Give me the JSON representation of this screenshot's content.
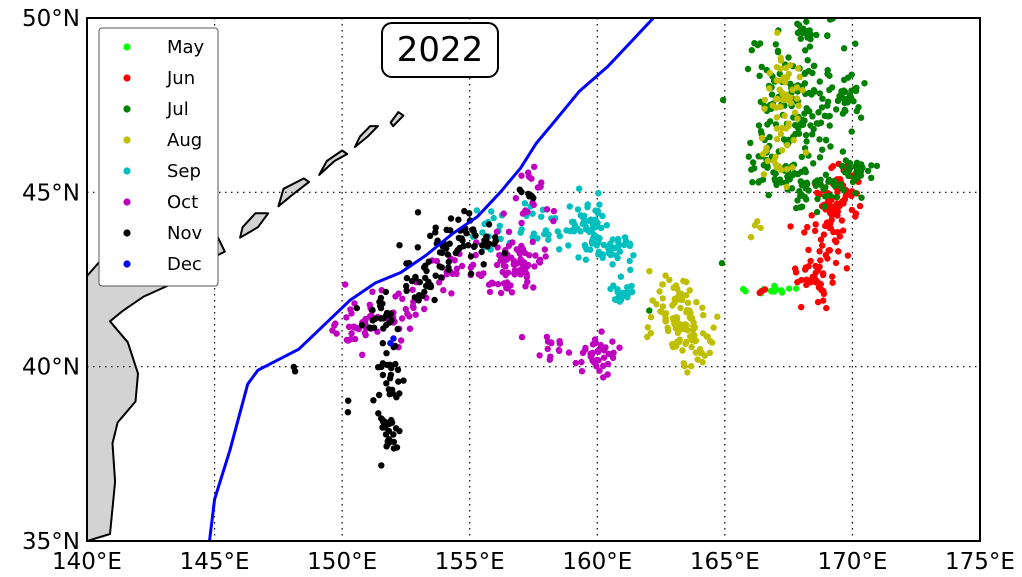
{
  "chart_data": {
    "type": "scatter",
    "title": "2022",
    "xlim": [
      140,
      175
    ],
    "ylim": [
      35,
      50
    ],
    "grid": true,
    "legend_position": "top-left",
    "x_ticks": [
      {
        "value": 140,
        "label": "140°E"
      },
      {
        "value": 145,
        "label": "145°E"
      },
      {
        "value": 150,
        "label": "150°E"
      },
      {
        "value": 155,
        "label": "155°E"
      },
      {
        "value": 160,
        "label": "160°E"
      },
      {
        "value": 165,
        "label": "165°E"
      },
      {
        "value": 170,
        "label": "170°E"
      },
      {
        "value": 175,
        "label": "175°E"
      }
    ],
    "y_ticks": [
      {
        "value": 35,
        "label": "35°N"
      },
      {
        "value": 40,
        "label": "40°N"
      },
      {
        "value": 45,
        "label": "45°N"
      },
      {
        "value": 50,
        "label": "50°N"
      }
    ],
    "colors": {
      "May": "#00ff00",
      "Jun": "#ff0000",
      "Jul": "#008000",
      "Aug": "#bfbf00",
      "Sep": "#00bfbf",
      "Oct": "#bf00bf",
      "Nov": "#000000",
      "Dec": "#0000ff",
      "line": "#0000ff",
      "land": "#d3d3d3"
    },
    "series": [
      {
        "name": "May",
        "clusters": [
          {
            "lon": 166.8,
            "lat": 42.2,
            "sdx": 0.5,
            "sdy": 0.05,
            "n": 14
          }
        ]
      },
      {
        "name": "Jun",
        "clusters": [
          {
            "lon": 169.2,
            "lat": 44.5,
            "sdx": 0.5,
            "sdy": 0.45,
            "n": 60
          },
          {
            "lon": 169.7,
            "lat": 45.3,
            "sdx": 0.3,
            "sdy": 0.3,
            "n": 20
          },
          {
            "lon": 168.7,
            "lat": 42.8,
            "sdx": 0.5,
            "sdy": 0.55,
            "n": 55
          },
          {
            "lon": 166.5,
            "lat": 42.1,
            "sdx": 0.1,
            "sdy": 0.08,
            "n": 3
          }
        ]
      },
      {
        "name": "Jul",
        "clusters": [
          {
            "lon": 168.0,
            "lat": 47.8,
            "sdx": 1.0,
            "sdy": 1.0,
            "n": 150
          },
          {
            "lon": 168.2,
            "lat": 45.2,
            "sdx": 1.0,
            "sdy": 0.35,
            "n": 70
          },
          {
            "lon": 169.8,
            "lat": 47.8,
            "sdx": 0.25,
            "sdy": 0.25,
            "n": 25
          },
          {
            "lon": 170.2,
            "lat": 45.6,
            "sdx": 0.4,
            "sdy": 0.25,
            "n": 25
          },
          {
            "lon": 167.9,
            "lat": 49.6,
            "sdx": 0.6,
            "sdy": 0.15,
            "n": 15
          },
          {
            "lon": 166.6,
            "lat": 45.9,
            "sdx": 0.4,
            "sdy": 0.3,
            "n": 20
          },
          {
            "lon": 164.9,
            "lat": 43.0,
            "sdx": 0.05,
            "sdy": 0.05,
            "n": 1
          },
          {
            "lon": 162.0,
            "lat": 41.6,
            "sdx": 0.05,
            "sdy": 0.05,
            "n": 1
          }
        ]
      },
      {
        "name": "Aug",
        "clusters": [
          {
            "lon": 167.3,
            "lat": 47.5,
            "sdx": 0.35,
            "sdy": 0.7,
            "n": 55
          },
          {
            "lon": 167.0,
            "lat": 46.0,
            "sdx": 0.4,
            "sdy": 0.35,
            "n": 15
          },
          {
            "lon": 163.3,
            "lat": 41.4,
            "sdx": 0.6,
            "sdy": 0.45,
            "n": 70
          },
          {
            "lon": 164.0,
            "lat": 40.5,
            "sdx": 0.35,
            "sdy": 0.3,
            "n": 25
          },
          {
            "lon": 163.0,
            "lat": 42.2,
            "sdx": 0.6,
            "sdy": 0.35,
            "n": 20
          },
          {
            "lon": 166.0,
            "lat": 44.2,
            "sdx": 0.3,
            "sdy": 0.6,
            "n": 4
          }
        ]
      },
      {
        "name": "Sep",
        "clusters": [
          {
            "lon": 159.5,
            "lat": 44.1,
            "sdx": 0.5,
            "sdy": 0.35,
            "n": 60
          },
          {
            "lon": 160.6,
            "lat": 43.3,
            "sdx": 0.45,
            "sdy": 0.25,
            "n": 35
          },
          {
            "lon": 157.2,
            "lat": 44.0,
            "sdx": 0.8,
            "sdy": 0.35,
            "n": 25
          },
          {
            "lon": 161.1,
            "lat": 42.1,
            "sdx": 0.3,
            "sdy": 0.2,
            "n": 20
          },
          {
            "lon": 155.6,
            "lat": 44.1,
            "sdx": 0.3,
            "sdy": 0.3,
            "n": 10
          }
        ]
      },
      {
        "name": "Oct",
        "clusters": [
          {
            "lon": 156.8,
            "lat": 42.9,
            "sdx": 0.45,
            "sdy": 0.35,
            "n": 70
          },
          {
            "lon": 154.8,
            "lat": 42.7,
            "sdx": 0.9,
            "sdy": 0.35,
            "n": 30
          },
          {
            "lon": 157.2,
            "lat": 44.5,
            "sdx": 0.6,
            "sdy": 0.4,
            "n": 15
          },
          {
            "lon": 157.5,
            "lat": 45.4,
            "sdx": 0.2,
            "sdy": 0.15,
            "n": 8
          },
          {
            "lon": 160.0,
            "lat": 40.4,
            "sdx": 0.35,
            "sdy": 0.35,
            "n": 35
          },
          {
            "lon": 158.3,
            "lat": 40.5,
            "sdx": 0.55,
            "sdy": 0.25,
            "n": 15
          },
          {
            "lon": 151.2,
            "lat": 41.3,
            "sdx": 0.6,
            "sdy": 0.35,
            "n": 40
          },
          {
            "lon": 150.2,
            "lat": 41.0,
            "sdx": 0.4,
            "sdy": 0.15,
            "n": 12
          },
          {
            "lon": 152.5,
            "lat": 41.6,
            "sdx": 0.4,
            "sdy": 0.35,
            "n": 15
          }
        ]
      },
      {
        "name": "Nov",
        "clusters": [
          {
            "lon": 154.8,
            "lat": 43.6,
            "sdx": 0.8,
            "sdy": 0.45,
            "n": 60
          },
          {
            "lon": 153.2,
            "lat": 42.4,
            "sdx": 0.45,
            "sdy": 0.45,
            "n": 30
          },
          {
            "lon": 151.5,
            "lat": 41.3,
            "sdx": 0.35,
            "sdy": 0.45,
            "n": 30
          },
          {
            "lon": 151.8,
            "lat": 39.5,
            "sdx": 0.25,
            "sdy": 0.55,
            "n": 25
          },
          {
            "lon": 151.8,
            "lat": 38.1,
            "sdx": 0.15,
            "sdy": 0.35,
            "n": 25
          },
          {
            "lon": 157.2,
            "lat": 44.9,
            "sdx": 0.15,
            "sdy": 0.12,
            "n": 6
          },
          {
            "lon": 150.2,
            "lat": 39.0,
            "sdx": 0.1,
            "sdy": 0.25,
            "n": 2
          },
          {
            "lon": 148.2,
            "lat": 39.9,
            "sdx": 0.05,
            "sdy": 0.05,
            "n": 2
          }
        ]
      },
      {
        "name": "Dec",
        "clusters": [
          {
            "lon": 152.0,
            "lat": 40.7,
            "sdx": 0.05,
            "sdy": 0.05,
            "n": 2
          }
        ]
      }
    ],
    "line": [
      [
        144.8,
        35.0
      ],
      [
        145.0,
        36.2
      ],
      [
        145.6,
        37.6
      ],
      [
        146.3,
        39.5
      ],
      [
        146.7,
        39.9
      ],
      [
        147.5,
        40.2
      ],
      [
        148.3,
        40.5
      ],
      [
        149.3,
        41.2
      ],
      [
        150.3,
        41.9
      ],
      [
        151.3,
        42.4
      ],
      [
        152.3,
        42.7
      ],
      [
        153.3,
        43.2
      ],
      [
        154.3,
        43.8
      ],
      [
        155.3,
        44.3
      ],
      [
        156.2,
        45.0
      ],
      [
        157.0,
        45.7
      ],
      [
        157.6,
        46.4
      ],
      [
        158.4,
        47.1
      ],
      [
        159.3,
        47.9
      ],
      [
        160.4,
        48.6
      ],
      [
        161.3,
        49.3
      ],
      [
        162.2,
        50.0
      ]
    ],
    "land": [
      {
        "name": "japan",
        "points": [
          [
            140.0,
            35.0
          ],
          [
            140.9,
            35.2
          ],
          [
            141.1,
            36.7
          ],
          [
            141.0,
            37.8
          ],
          [
            141.2,
            38.4
          ],
          [
            141.9,
            39.0
          ],
          [
            142.0,
            39.8
          ],
          [
            141.6,
            40.7
          ],
          [
            140.9,
            41.3
          ],
          [
            141.4,
            41.6
          ],
          [
            142.2,
            42.0
          ],
          [
            143.4,
            42.4
          ],
          [
            144.3,
            42.9
          ],
          [
            145.4,
            43.3
          ],
          [
            145.0,
            43.9
          ],
          [
            144.5,
            44.1
          ],
          [
            143.0,
            44.5
          ],
          [
            142.0,
            45.4
          ],
          [
            141.7,
            45.4
          ],
          [
            141.3,
            44.6
          ],
          [
            141.3,
            43.4
          ],
          [
            140.6,
            43.1
          ],
          [
            140.0,
            42.6
          ]
        ]
      },
      {
        "name": "kuril-1",
        "points": [
          [
            146.0,
            43.7
          ],
          [
            146.7,
            44.0
          ],
          [
            147.1,
            44.4
          ],
          [
            146.6,
            44.4
          ],
          [
            146.1,
            44.0
          ]
        ]
      },
      {
        "name": "kuril-2",
        "points": [
          [
            147.5,
            44.6
          ],
          [
            148.0,
            44.9
          ],
          [
            148.7,
            45.3
          ],
          [
            148.5,
            45.4
          ],
          [
            147.7,
            45.1
          ]
        ]
      },
      {
        "name": "kuril-3",
        "points": [
          [
            149.1,
            45.5
          ],
          [
            149.7,
            45.9
          ],
          [
            150.2,
            46.1
          ],
          [
            150.0,
            46.2
          ],
          [
            149.4,
            45.9
          ]
        ]
      },
      {
        "name": "kuril-4",
        "points": [
          [
            150.5,
            46.3
          ],
          [
            151.0,
            46.6
          ],
          [
            151.4,
            46.9
          ],
          [
            151.1,
            46.9
          ],
          [
            150.7,
            46.6
          ]
        ]
      },
      {
        "name": "kuril-5",
        "points": [
          [
            152.0,
            46.9
          ],
          [
            152.4,
            47.2
          ],
          [
            152.2,
            47.3
          ],
          [
            151.9,
            47.0
          ]
        ]
      }
    ],
    "legend": [
      {
        "label": "May",
        "color": "#00ff00"
      },
      {
        "label": "Jun",
        "color": "#ff0000"
      },
      {
        "label": "Jul",
        "color": "#008000"
      },
      {
        "label": "Aug",
        "color": "#bfbf00"
      },
      {
        "label": "Sep",
        "color": "#00bfbf"
      },
      {
        "label": "Oct",
        "color": "#bf00bf"
      },
      {
        "label": "Nov",
        "color": "#000000"
      },
      {
        "label": "Dec",
        "color": "#0000ff"
      }
    ]
  }
}
